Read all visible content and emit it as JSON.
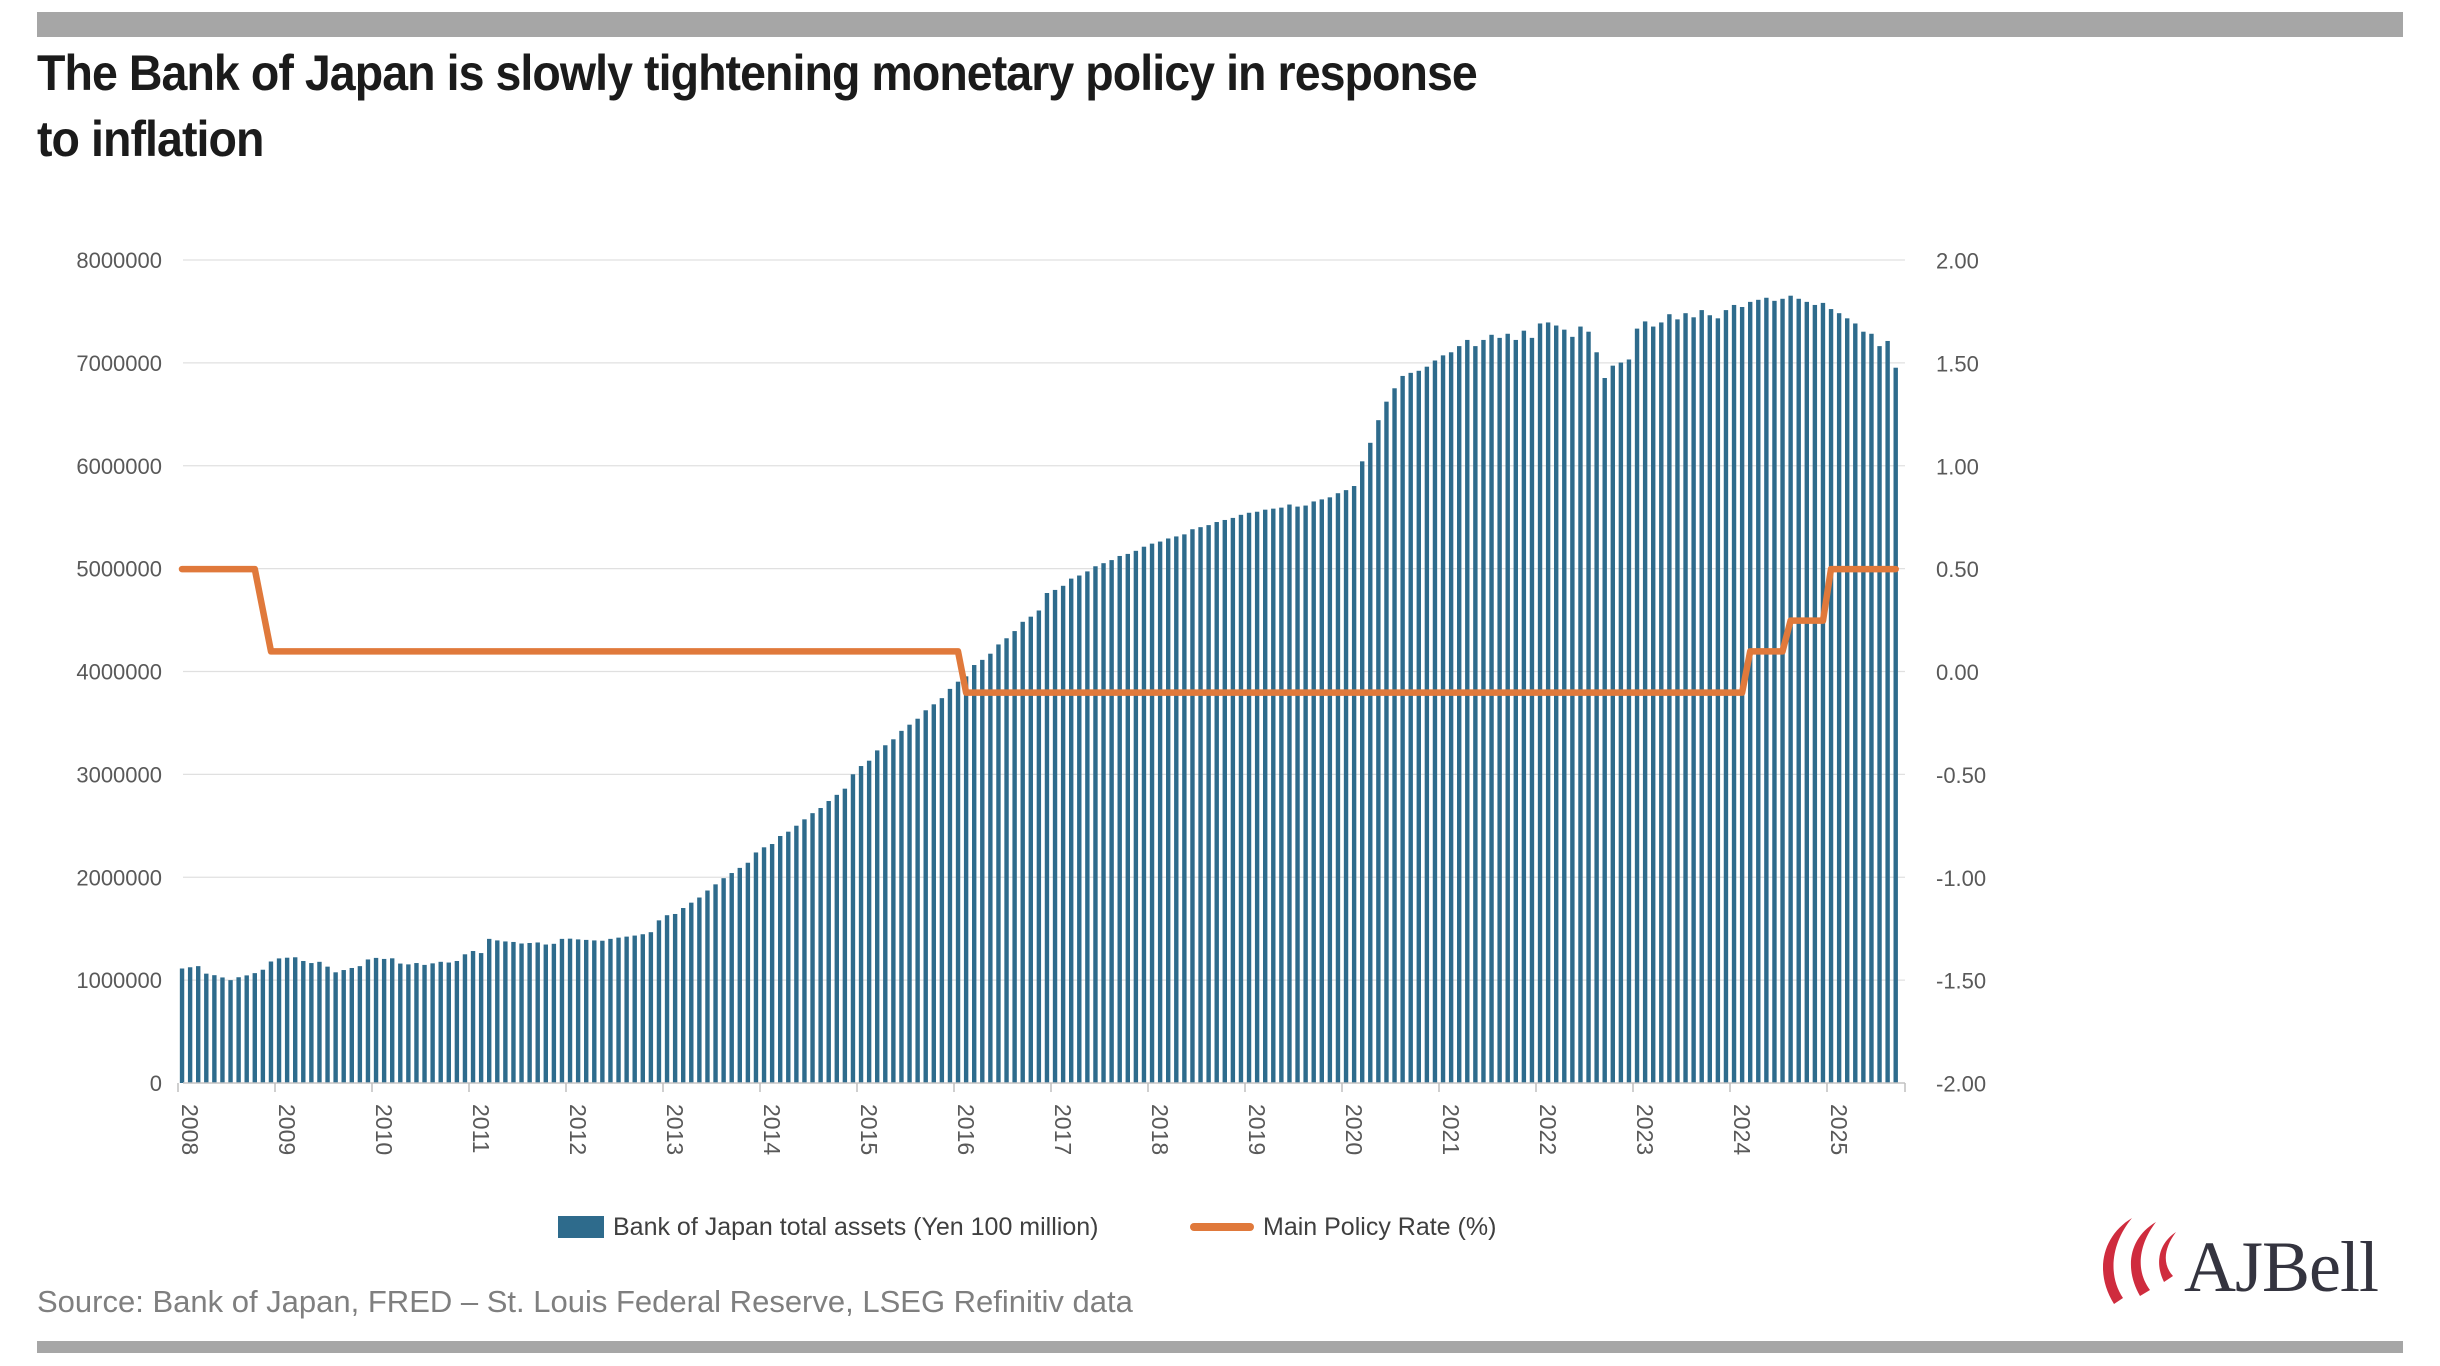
{
  "page": {
    "title_lines": [
      "The Bank of Japan is slowly tightening monetary policy in response",
      "to inflation"
    ],
    "source": "Source: Bank of Japan, FRED – St. Louis Federal Reserve, LSEG Refinitiv data",
    "brand": {
      "name": "AJBell",
      "logo_red": "#cf2c3e",
      "logo_navy": "#34343f"
    },
    "divider_color": "#a6a6a6"
  },
  "chart_data": {
    "type": "combo-bar-line",
    "frequency": "monthly",
    "x_start": "2008-01",
    "x_end": "2025-09",
    "grid": true,
    "legend_position": "bottom",
    "x_tick_years": [
      "2008",
      "2009",
      "2010",
      "2011",
      "2012",
      "2013",
      "2014",
      "2015",
      "2016",
      "2017",
      "2018",
      "2019",
      "2020",
      "2021",
      "2022",
      "2023",
      "2024",
      "2025"
    ],
    "left_axis": {
      "min": 0,
      "max": 8000000,
      "step": 1000000,
      "tick_labels": [
        "0",
        "1000000",
        "2000000",
        "3000000",
        "4000000",
        "5000000",
        "6000000",
        "7000000",
        "8000000"
      ]
    },
    "right_axis": {
      "min": -2.0,
      "max": 2.0,
      "step": 0.5,
      "tick_labels": [
        "-2.00",
        "-1.50",
        "-1.00",
        "-0.50",
        "0.00",
        "0.50",
        "1.00",
        "1.50",
        "2.00"
      ]
    },
    "series": [
      {
        "name": "Bank of Japan total assets (Yen 100 million)",
        "type": "bar",
        "axis": "left",
        "color": "#2e6b8c",
        "values": [
          1113000,
          1125000,
          1136000,
          1063000,
          1048000,
          1026000,
          1000000,
          1028000,
          1046000,
          1068000,
          1101000,
          1181000,
          1211000,
          1218000,
          1222000,
          1186000,
          1166000,
          1178000,
          1131000,
          1076000,
          1098000,
          1118000,
          1136000,
          1201000,
          1216000,
          1206000,
          1212000,
          1161000,
          1153000,
          1166000,
          1148000,
          1163000,
          1178000,
          1171000,
          1186000,
          1251000,
          1283000,
          1263000,
          1401000,
          1386000,
          1376000,
          1371000,
          1356000,
          1361000,
          1366000,
          1346000,
          1353000,
          1401000,
          1403000,
          1396000,
          1391000,
          1386000,
          1383000,
          1401000,
          1413000,
          1423000,
          1433000,
          1446000,
          1466000,
          1581000,
          1631000,
          1643000,
          1701000,
          1753000,
          1803000,
          1871000,
          1931000,
          1991000,
          2041000,
          2091000,
          2141000,
          2241000,
          2291000,
          2323000,
          2401000,
          2443000,
          2501000,
          2563000,
          2623000,
          2673000,
          2741000,
          2801000,
          2861000,
          3001000,
          3081000,
          3133000,
          3233000,
          3283000,
          3341000,
          3423000,
          3483000,
          3541000,
          3623000,
          3681000,
          3741000,
          3831000,
          3901000,
          3953000,
          4063000,
          4113000,
          4173000,
          4263000,
          4323000,
          4393000,
          4483000,
          4533000,
          4593000,
          4763000,
          4793000,
          4833000,
          4903000,
          4933000,
          4973000,
          5023000,
          5053000,
          5083000,
          5123000,
          5143000,
          5173000,
          5213000,
          5243000,
          5263000,
          5293000,
          5313000,
          5333000,
          5383000,
          5403000,
          5423000,
          5453000,
          5473000,
          5493000,
          5523000,
          5543000,
          5553000,
          5573000,
          5583000,
          5593000,
          5623000,
          5603000,
          5613000,
          5653000,
          5673000,
          5693000,
          5733000,
          5763000,
          5803000,
          6043000,
          6223000,
          6443000,
          6623000,
          6753000,
          6873000,
          6903000,
          6923000,
          6963000,
          7023000,
          7073000,
          7103000,
          7163000,
          7223000,
          7163000,
          7223000,
          7273000,
          7243000,
          7283000,
          7223000,
          7313000,
          7243000,
          7383000,
          7393000,
          7363000,
          7323000,
          7253000,
          7353000,
          7303000,
          7103000,
          6853000,
          6973000,
          7003000,
          7033000,
          7333000,
          7403000,
          7353000,
          7393000,
          7473000,
          7423000,
          7483000,
          7443000,
          7513000,
          7463000,
          7433000,
          7513000,
          7563000,
          7543000,
          7593000,
          7613000,
          7633000,
          7603000,
          7623000,
          7653000,
          7623000,
          7593000,
          7563000,
          7583000,
          7523000,
          7483000,
          7433000,
          7383000,
          7303000,
          7283000,
          7163000,
          7213000,
          6953000
        ]
      },
      {
        "name": "Main Policy Rate (%)",
        "type": "line",
        "axis": "right",
        "color": "#e0793b",
        "values": [
          0.5,
          0.5,
          0.5,
          0.5,
          0.5,
          0.5,
          0.5,
          0.5,
          0.5,
          0.5,
          0.3,
          0.1,
          0.1,
          0.1,
          0.1,
          0.1,
          0.1,
          0.1,
          0.1,
          0.1,
          0.1,
          0.1,
          0.1,
          0.1,
          0.1,
          0.1,
          0.1,
          0.1,
          0.1,
          0.1,
          0.1,
          0.1,
          0.1,
          0.1,
          0.1,
          0.1,
          0.1,
          0.1,
          0.1,
          0.1,
          0.1,
          0.1,
          0.1,
          0.1,
          0.1,
          0.1,
          0.1,
          0.1,
          0.1,
          0.1,
          0.1,
          0.1,
          0.1,
          0.1,
          0.1,
          0.1,
          0.1,
          0.1,
          0.1,
          0.1,
          0.1,
          0.1,
          0.1,
          0.1,
          0.1,
          0.1,
          0.1,
          0.1,
          0.1,
          0.1,
          0.1,
          0.1,
          0.1,
          0.1,
          0.1,
          0.1,
          0.1,
          0.1,
          0.1,
          0.1,
          0.1,
          0.1,
          0.1,
          0.1,
          0.1,
          0.1,
          0.1,
          0.1,
          0.1,
          0.1,
          0.1,
          0.1,
          0.1,
          0.1,
          0.1,
          0.1,
          0.1,
          -0.1,
          -0.1,
          -0.1,
          -0.1,
          -0.1,
          -0.1,
          -0.1,
          -0.1,
          -0.1,
          -0.1,
          -0.1,
          -0.1,
          -0.1,
          -0.1,
          -0.1,
          -0.1,
          -0.1,
          -0.1,
          -0.1,
          -0.1,
          -0.1,
          -0.1,
          -0.1,
          -0.1,
          -0.1,
          -0.1,
          -0.1,
          -0.1,
          -0.1,
          -0.1,
          -0.1,
          -0.1,
          -0.1,
          -0.1,
          -0.1,
          -0.1,
          -0.1,
          -0.1,
          -0.1,
          -0.1,
          -0.1,
          -0.1,
          -0.1,
          -0.1,
          -0.1,
          -0.1,
          -0.1,
          -0.1,
          -0.1,
          -0.1,
          -0.1,
          -0.1,
          -0.1,
          -0.1,
          -0.1,
          -0.1,
          -0.1,
          -0.1,
          -0.1,
          -0.1,
          -0.1,
          -0.1,
          -0.1,
          -0.1,
          -0.1,
          -0.1,
          -0.1,
          -0.1,
          -0.1,
          -0.1,
          -0.1,
          -0.1,
          -0.1,
          -0.1,
          -0.1,
          -0.1,
          -0.1,
          -0.1,
          -0.1,
          -0.1,
          -0.1,
          -0.1,
          -0.1,
          -0.1,
          -0.1,
          -0.1,
          -0.1,
          -0.1,
          -0.1,
          -0.1,
          -0.1,
          -0.1,
          -0.1,
          -0.1,
          -0.1,
          -0.1,
          -0.1,
          0.1,
          0.1,
          0.1,
          0.1,
          0.1,
          0.25,
          0.25,
          0.25,
          0.25,
          0.25,
          0.5,
          0.5,
          0.5,
          0.5,
          0.5,
          0.5,
          0.5,
          0.5,
          0.5
        ]
      }
    ]
  }
}
